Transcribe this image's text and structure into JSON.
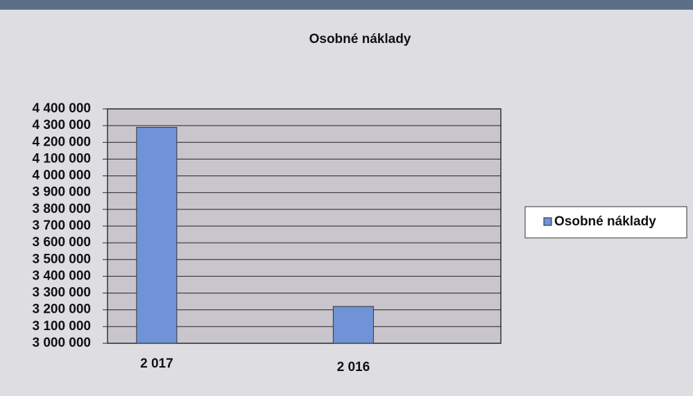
{
  "chart_data": {
    "type": "bar",
    "title": "Osobné náklady",
    "categories": [
      "2 017",
      "2 016"
    ],
    "series": [
      {
        "name": "Osobné náklady",
        "color": "#6f93d6",
        "values": [
          4290000,
          3220000
        ]
      }
    ],
    "ylim": [
      3000000,
      4400000
    ],
    "yticks": [
      {
        "value": 3000000,
        "label": "3 000 000"
      },
      {
        "value": 3100000,
        "label": "3 100 000"
      },
      {
        "value": 3200000,
        "label": "3 200 000"
      },
      {
        "value": 3300000,
        "label": "3 300 000"
      },
      {
        "value": 3400000,
        "label": "3 400 000"
      },
      {
        "value": 3500000,
        "label": "3 500 000"
      },
      {
        "value": 3600000,
        "label": "3 600 000"
      },
      {
        "value": 3700000,
        "label": "3 700 000"
      },
      {
        "value": 3800000,
        "label": "3 800 000"
      },
      {
        "value": 3900000,
        "label": "3 900 000"
      },
      {
        "value": 4000000,
        "label": "4 000 000"
      },
      {
        "value": 4100000,
        "label": "4 100 000"
      },
      {
        "value": 4200000,
        "label": "4 200 000"
      },
      {
        "value": 4300000,
        "label": "4 300 000"
      },
      {
        "value": 4400000,
        "label": "4 400 000"
      }
    ],
    "grid": true,
    "legend": "right"
  }
}
